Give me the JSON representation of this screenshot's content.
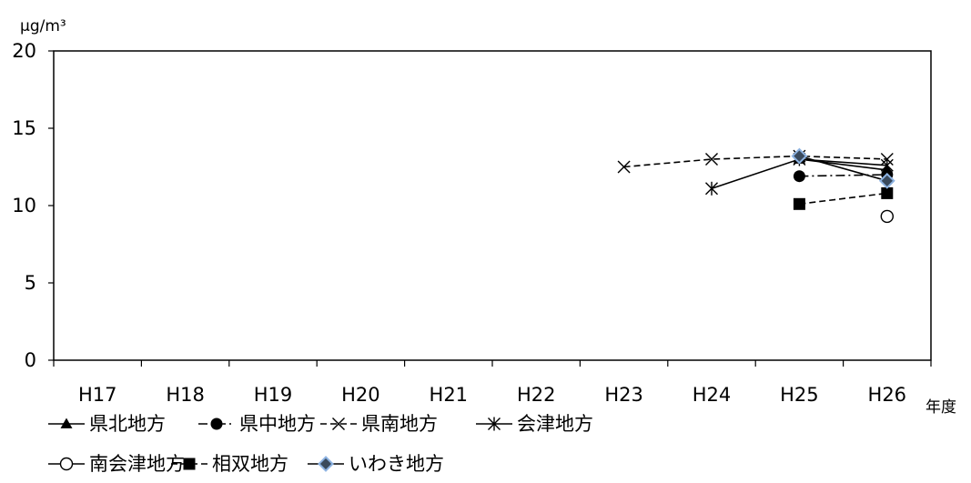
{
  "chart_data": {
    "type": "line",
    "ylabel": "μg/m³",
    "xlabel": "年度",
    "categories": [
      "H17",
      "H18",
      "H19",
      "H20",
      "H21",
      "H22",
      "H23",
      "H24",
      "H25",
      "H26"
    ],
    "ylim": [
      0,
      20
    ],
    "yticks": [
      0,
      5,
      10,
      15,
      20
    ],
    "grid": false,
    "legend_position": "bottom",
    "series": [
      {
        "name": "県北地方",
        "values": [
          null,
          null,
          null,
          null,
          null,
          null,
          null,
          null,
          13.0,
          12.3
        ],
        "line": "solid",
        "marker": "triangle-filled",
        "color": "#000000"
      },
      {
        "name": "県中地方",
        "values": [
          null,
          null,
          null,
          null,
          null,
          null,
          null,
          null,
          11.9,
          12.0
        ],
        "line": "dashdot",
        "marker": "circle-filled",
        "color": "#000000"
      },
      {
        "name": "県南地方",
        "values": [
          null,
          null,
          null,
          null,
          null,
          null,
          12.5,
          13.0,
          13.2,
          13.0
        ],
        "line": "dashed",
        "marker": "x",
        "color": "#000000"
      },
      {
        "name": "会津地方",
        "values": [
          null,
          null,
          null,
          null,
          null,
          null,
          null,
          11.1,
          13.0,
          12.6
        ],
        "line": "solid",
        "marker": "star",
        "color": "#000000"
      },
      {
        "name": "南会津地方",
        "values": [
          null,
          null,
          null,
          null,
          null,
          null,
          null,
          null,
          null,
          9.3
        ],
        "line": "solid",
        "marker": "circle-open",
        "color": "#000000"
      },
      {
        "name": "相双地方",
        "values": [
          null,
          null,
          null,
          null,
          null,
          null,
          null,
          null,
          10.1,
          10.8
        ],
        "line": "dashed",
        "marker": "square-filled",
        "color": "#000000"
      },
      {
        "name": "いわき地方",
        "values": [
          null,
          null,
          null,
          null,
          null,
          null,
          null,
          null,
          13.2,
          11.6
        ],
        "line": "solid",
        "marker": "diamond-filled",
        "color": "#000000",
        "marker_outline": "#8DB3E2"
      }
    ]
  }
}
